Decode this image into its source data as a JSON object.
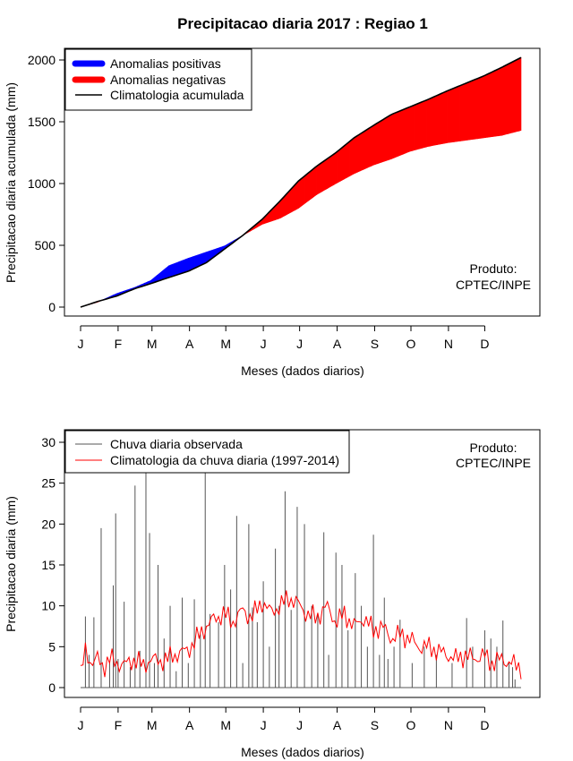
{
  "title": "Precipitacao diaria 2017 : Regiao 1",
  "months": [
    "J",
    "F",
    "M",
    "A",
    "M",
    "J",
    "J",
    "A",
    "S",
    "O",
    "N",
    "D"
  ],
  "chart_data": [
    {
      "type": "area",
      "title": "Precipitacao diaria 2017 : Regiao 1",
      "xlabel": "Meses (dados diarios)",
      "ylabel": "Precipitacao diaria acumulada (mm)",
      "yticks": [
        0,
        500,
        1000,
        1500,
        2000
      ],
      "ylim": [
        0,
        2000
      ],
      "xlim_days": [
        1,
        365
      ],
      "legend": {
        "position": "top-left",
        "entries": [
          {
            "label": "Anomalias positivas",
            "color": "#0000ff"
          },
          {
            "label": "Anomalias negativas",
            "color": "#ff0000"
          },
          {
            "label": "Climatologia acumulada",
            "color": "#000000"
          }
        ]
      },
      "credit": [
        "Produto:",
        "CPTEC/INPE"
      ],
      "climatology_cumulative": {
        "day": [
          1,
          15,
          31,
          46,
          59,
          74,
          90,
          105,
          120,
          135,
          151,
          166,
          181,
          196,
          212,
          227,
          243,
          258,
          273,
          288,
          304,
          319,
          334,
          349,
          365
        ],
        "value": [
          0,
          45,
          90,
          150,
          190,
          240,
          290,
          360,
          470,
          580,
          710,
          860,
          1020,
          1140,
          1250,
          1370,
          1470,
          1560,
          1620,
          1680,
          1750,
          1810,
          1870,
          1940,
          2020
        ]
      },
      "observed_cumulative": {
        "day": [
          1,
          15,
          31,
          46,
          59,
          74,
          90,
          105,
          120,
          135,
          151,
          166,
          181,
          196,
          212,
          227,
          243,
          258,
          273,
          288,
          304,
          319,
          334,
          349,
          365
        ],
        "value": [
          0,
          40,
          110,
          160,
          215,
          335,
          395,
          445,
          495,
          580,
          670,
          720,
          800,
          910,
          1000,
          1080,
          1150,
          1200,
          1260,
          1300,
          1330,
          1350,
          1370,
          1390,
          1430
        ]
      }
    },
    {
      "type": "bar",
      "xlabel": "Meses (dados diarios)",
      "ylabel": "Precipitacao diaria (mm)",
      "yticks": [
        0,
        5,
        10,
        15,
        20,
        25,
        30
      ],
      "ylim": [
        0,
        30
      ],
      "xlim_days": [
        1,
        365
      ],
      "legend": {
        "position": "top-left",
        "entries": [
          {
            "label": "Chuva diaria observada",
            "color": "#555555"
          },
          {
            "label": "Climatologia da chuva diaria (1997-2014)",
            "color": "#ff0000"
          }
        ]
      },
      "credit": [
        "Produto:",
        "CPTEC/INPE"
      ],
      "observed_daily": {
        "days": [
          5,
          8,
          12,
          18,
          25,
          28,
          30,
          32,
          37,
          42,
          46,
          50,
          55,
          58,
          62,
          65,
          70,
          75,
          80,
          85,
          90,
          95,
          100,
          104,
          108,
          115,
          120,
          125,
          130,
          135,
          140,
          143,
          147,
          152,
          157,
          162,
          165,
          170,
          175,
          180,
          186,
          192,
          197,
          202,
          206,
          212,
          217,
          222,
          228,
          233,
          238,
          243,
          248,
          252,
          255,
          260,
          265,
          275,
          285,
          295,
          308,
          320,
          325,
          335,
          340,
          345,
          350,
          355,
          358,
          360
        ],
        "values": [
          8.7,
          4.0,
          8.6,
          19.5,
          3.0,
          12.5,
          21.3,
          3.5,
          10.5,
          2.5,
          24.7,
          4.5,
          27.0,
          18.9,
          3.0,
          15.0,
          6.0,
          10.0,
          2.0,
          11.0,
          3.0,
          10.8,
          6.5,
          27.0,
          9.0,
          8.0,
          15.0,
          12.0,
          21.0,
          3.0,
          20.0,
          9.8,
          8.0,
          13.0,
          5.0,
          17.0,
          10.0,
          24.0,
          9.5,
          22.1,
          20.0,
          10.0,
          9.0,
          19.0,
          4.0,
          16.5,
          15.0,
          7.0,
          14.0,
          10.0,
          5.0,
          18.7,
          4.0,
          11.0,
          3.5,
          5.0,
          8.3,
          3.0,
          5.0,
          4.0,
          3.0,
          8.5,
          5.0,
          7.0,
          6.0,
          5.0,
          8.2,
          3.0,
          2.5,
          1.0
        ]
      },
      "climatology_daily": {
        "day": [
          1,
          5,
          10,
          15,
          20,
          25,
          31,
          38,
          46,
          53,
          59,
          66,
          74,
          82,
          90,
          97,
          105,
          112,
          120,
          127,
          135,
          142,
          151,
          158,
          166,
          173,
          181,
          188,
          196,
          204,
          212,
          219,
          227,
          235,
          243,
          250,
          258,
          265,
          273,
          280,
          288,
          296,
          304,
          311,
          319,
          326,
          334,
          341,
          349,
          356,
          365
        ],
        "value": [
          1.5,
          4.5,
          3.0,
          3.5,
          2.5,
          3.5,
          3.0,
          2.8,
          3.5,
          2.6,
          3.5,
          3.2,
          3.6,
          4.2,
          4.6,
          6.0,
          7.5,
          8.5,
          9.0,
          8.0,
          9.5,
          8.5,
          10.5,
          9.2,
          10.0,
          11.0,
          10.2,
          9.0,
          8.5,
          10.0,
          8.0,
          9.0,
          7.5,
          8.5,
          7.0,
          7.5,
          6.0,
          6.5,
          6.0,
          5.0,
          5.0,
          4.5,
          4.0,
          3.5,
          4.0,
          3.5,
          4.0,
          3.0,
          3.5,
          3.0,
          2.5
        ]
      }
    }
  ]
}
